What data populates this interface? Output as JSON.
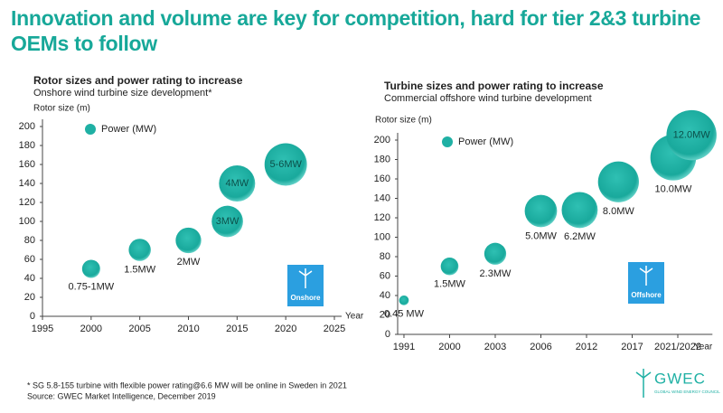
{
  "title": "Innovation and volume are key for competition, hard for tier 2&3 turbine OEMs to follow",
  "footnote": "* SG 5.8-155 turbine with flexible power rating@6.6 MW will be online in Sweden in 2021",
  "source": "Source: GWEC Market Intelligence, December 2019",
  "logo": "GWEC",
  "logo_tagline": "GLOBAL WIND ENERGY COUNCIL",
  "chart_data": [
    {
      "type": "bubble",
      "title": "Rotor sizes and power rating to increase",
      "subtitle": "Onshore wind turbine size development*",
      "y_label": "Rotor size (m)",
      "x_label": "Year",
      "legend": "Power (MW)",
      "badge": "Onshore",
      "color": "#1fb0a4",
      "x": [
        2000,
        2005,
        2010,
        2014,
        2015,
        2020
      ],
      "values": [
        50,
        70,
        80,
        100,
        140,
        160
      ],
      "sizes": [
        1,
        1.5,
        2,
        3,
        4,
        5.5
      ],
      "size_labels": [
        "0.75-1MW",
        "1.5MW",
        "2MW",
        "3MW",
        "4MW",
        "5-6MW"
      ],
      "xlim": [
        1995,
        2025
      ],
      "xticks": [
        1995,
        2000,
        2005,
        2010,
        2015,
        2020,
        2025
      ],
      "ylim": [
        0,
        200
      ],
      "yticks": [
        0,
        20,
        40,
        60,
        80,
        100,
        120,
        140,
        160,
        180,
        200
      ]
    },
    {
      "type": "bubble",
      "title": "Turbine sizes and power rating to increase",
      "subtitle": "Commercial offshore wind turbine development",
      "y_label": "Rotor size (m)",
      "x_label": "Year",
      "legend": "Power (MW)",
      "badge": "Offshore",
      "color": "#1fb0a4",
      "x": [
        0,
        1,
        2,
        3,
        3.85,
        4.7,
        5.9,
        6.3
      ],
      "values": [
        35,
        70,
        83,
        127,
        128,
        157,
        182,
        205
      ],
      "sizes": [
        0.45,
        1.5,
        2.3,
        5,
        6.2,
        8,
        10,
        12
      ],
      "size_labels": [
        "0.45 MW",
        "1.5MW",
        "2.3MW",
        "5.0MW",
        "6.2MW",
        "8.0MW",
        "10.0MW",
        "12.0MW"
      ],
      "xlim": [
        -0.15,
        6.6
      ],
      "xticks": [
        {
          "value": 0,
          "label": "1991"
        },
        {
          "value": 1,
          "label": "2000"
        },
        {
          "value": 2,
          "label": "2003"
        },
        {
          "value": 3,
          "label": "2006"
        },
        {
          "value": 4,
          "label": "2012"
        },
        {
          "value": 5,
          "label": "2017"
        },
        {
          "value": 6,
          "label": "2021/2022"
        }
      ],
      "ylim": [
        0,
        200
      ],
      "yticks": [
        0,
        20,
        40,
        60,
        80,
        100,
        120,
        140,
        160,
        180,
        200
      ]
    }
  ]
}
